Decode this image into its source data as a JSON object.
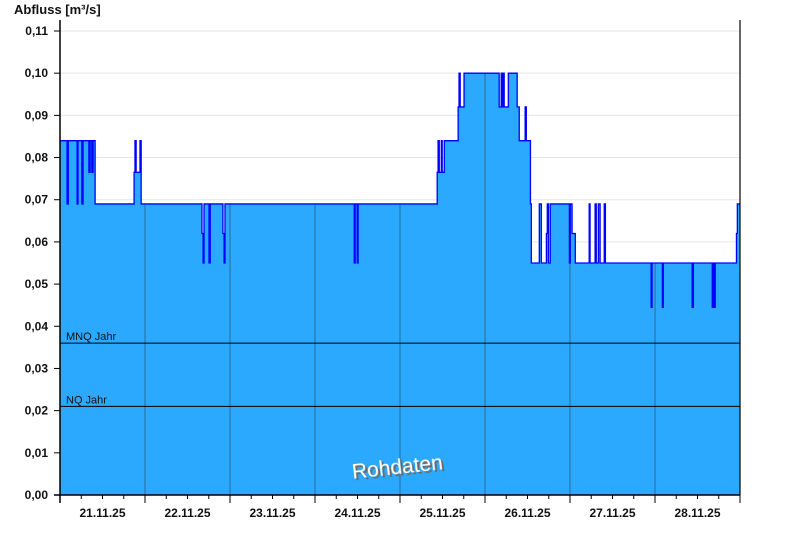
{
  "chart_data": {
    "type": "area",
    "title": "",
    "ylabel": "Abfluss [m³/s]",
    "xlabel": "",
    "ylim": [
      0,
      0.112
    ],
    "xlim": [
      "2025-11-21T00:00",
      "2025-11-29T00:00"
    ],
    "yticks": [
      "0,00",
      "0,01",
      "0,02",
      "0,03",
      "0,04",
      "0,05",
      "0,06",
      "0,07",
      "0,08",
      "0,09",
      "0,10",
      "0,11"
    ],
    "xticks": [
      "21.11.25",
      "22.11.25",
      "23.11.25",
      "24.11.25",
      "25.11.25",
      "26.11.25",
      "27.11.25",
      "28.11.25"
    ],
    "grid": true,
    "step": "after",
    "colors": {
      "fill": "#2ba9ff",
      "line": "#0000ff",
      "day_lines": "#2a6a95",
      "ref_lines": "#000000"
    },
    "reference_lines": [
      {
        "label": "MNQ Jahr",
        "value": 0.036
      },
      {
        "label": "NQ Jahr",
        "value": 0.021
      }
    ],
    "watermark": "Rohdaten",
    "series": [
      [
        "2025-11-21T00:00",
        0.084
      ],
      [
        "2025-11-21T02:00",
        0.069
      ],
      [
        "2025-11-21T02:20",
        0.084
      ],
      [
        "2025-11-21T04:50",
        0.069
      ],
      [
        "2025-11-21T05:05",
        0.084
      ],
      [
        "2025-11-21T06:10",
        0.069
      ],
      [
        "2025-11-21T06:30",
        0.084
      ],
      [
        "2025-11-21T08:10",
        0.0765
      ],
      [
        "2025-11-21T08:30",
        0.084
      ],
      [
        "2025-11-21T09:00",
        0.0765
      ],
      [
        "2025-11-21T09:20",
        0.084
      ],
      [
        "2025-11-21T09:55",
        0.069
      ],
      [
        "2025-11-21T20:55",
        0.0765
      ],
      [
        "2025-11-21T21:10",
        0.084
      ],
      [
        "2025-11-21T21:30",
        0.0765
      ],
      [
        "2025-11-21T22:35",
        0.084
      ],
      [
        "2025-11-21T22:55",
        0.069
      ],
      [
        "2025-11-22T16:05",
        0.062
      ],
      [
        "2025-11-22T16:25",
        0.055
      ],
      [
        "2025-11-22T16:40",
        0.069
      ],
      [
        "2025-11-22T18:05",
        0.055
      ],
      [
        "2025-11-22T18:25",
        0.069
      ],
      [
        "2025-11-22T22:00",
        0.062
      ],
      [
        "2025-11-22T22:20",
        0.055
      ],
      [
        "2025-11-22T22:35",
        0.069
      ],
      [
        "2025-11-24T11:05",
        0.055
      ],
      [
        "2025-11-24T11:20",
        0.069
      ],
      [
        "2025-11-24T11:55",
        0.055
      ],
      [
        "2025-11-24T12:10",
        0.069
      ],
      [
        "2025-11-25T10:30",
        0.0765
      ],
      [
        "2025-11-25T10:45",
        0.084
      ],
      [
        "2025-11-25T11:05",
        0.0765
      ],
      [
        "2025-11-25T11:40",
        0.084
      ],
      [
        "2025-11-25T11:55",
        0.0765
      ],
      [
        "2025-11-25T12:30",
        0.084
      ],
      [
        "2025-11-25T16:25",
        0.092
      ],
      [
        "2025-11-25T16:40",
        0.1
      ],
      [
        "2025-11-25T17:00",
        0.092
      ],
      [
        "2025-11-25T18:05",
        0.1
      ],
      [
        "2025-11-26T04:00",
        0.092
      ],
      [
        "2025-11-26T04:35",
        0.1
      ],
      [
        "2025-11-26T04:55",
        0.092
      ],
      [
        "2025-11-26T05:10",
        0.1
      ],
      [
        "2025-11-26T05:25",
        0.092
      ],
      [
        "2025-11-26T06:35",
        0.1
      ],
      [
        "2025-11-26T09:05",
        0.092
      ],
      [
        "2025-11-26T09:40",
        0.084
      ],
      [
        "2025-11-26T11:20",
        0.092
      ],
      [
        "2025-11-26T11:40",
        0.084
      ],
      [
        "2025-11-26T12:50",
        0.069
      ],
      [
        "2025-11-26T13:05",
        0.055
      ],
      [
        "2025-11-26T15:20",
        0.069
      ],
      [
        "2025-11-26T15:55",
        0.055
      ],
      [
        "2025-11-26T17:20",
        0.062
      ],
      [
        "2025-11-26T17:35",
        0.069
      ],
      [
        "2025-11-26T17:55",
        0.055
      ],
      [
        "2025-11-26T18:25",
        0.069
      ],
      [
        "2025-11-26T23:50",
        0.055
      ],
      [
        "2025-11-27T00:05",
        0.069
      ],
      [
        "2025-11-27T00:35",
        0.062
      ],
      [
        "2025-11-27T01:30",
        0.055
      ],
      [
        "2025-11-27T05:25",
        0.069
      ],
      [
        "2025-11-27T05:40",
        0.055
      ],
      [
        "2025-11-27T07:05",
        0.069
      ],
      [
        "2025-11-27T07:25",
        0.055
      ],
      [
        "2025-11-27T08:00",
        0.069
      ],
      [
        "2025-11-27T08:30",
        0.055
      ],
      [
        "2025-11-27T09:40",
        0.069
      ],
      [
        "2025-11-27T10:00",
        0.055
      ],
      [
        "2025-11-27T22:55",
        0.0445
      ],
      [
        "2025-11-27T23:10",
        0.055
      ],
      [
        "2025-11-28T02:05",
        0.0445
      ],
      [
        "2025-11-28T02:20",
        0.055
      ],
      [
        "2025-11-28T10:30",
        0.0445
      ],
      [
        "2025-11-28T10:50",
        0.055
      ],
      [
        "2025-11-28T16:10",
        0.0445
      ],
      [
        "2025-11-28T16:30",
        0.055
      ],
      [
        "2025-11-28T16:45",
        0.0445
      ],
      [
        "2025-11-28T17:00",
        0.055
      ],
      [
        "2025-11-28T23:00",
        0.062
      ],
      [
        "2025-11-28T23:15",
        0.069
      ],
      [
        "2025-11-29T00:00",
        0.069
      ]
    ]
  }
}
